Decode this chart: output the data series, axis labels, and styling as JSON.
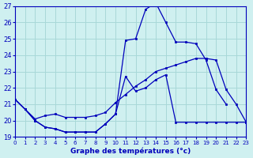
{
  "title": "Graphe des températures (°c)",
  "background_color": "#cff0f0",
  "grid_color": "#a8d8d8",
  "line_color": "#0000bb",
  "ylim": [
    19,
    27
  ],
  "xlim": [
    0,
    23
  ],
  "yticks": [
    19,
    20,
    21,
    22,
    23,
    24,
    25,
    26,
    27
  ],
  "xticks": [
    0,
    1,
    2,
    3,
    4,
    5,
    6,
    7,
    8,
    9,
    10,
    11,
    12,
    13,
    14,
    15,
    16,
    17,
    18,
    19,
    20,
    21,
    22,
    23
  ],
  "series": [
    {
      "x": [
        0,
        1,
        2,
        3,
        4,
        5,
        6,
        7,
        8,
        9,
        10,
        11,
        12,
        13,
        14,
        15,
        16,
        17,
        18,
        19,
        20,
        21
      ],
      "y": [
        21.3,
        20.7,
        20.0,
        19.6,
        19.5,
        19.3,
        19.3,
        19.3,
        19.3,
        19.8,
        20.4,
        24.9,
        25.0,
        26.8,
        27.2,
        26.0,
        24.8,
        24.8,
        24.7,
        23.7,
        21.9,
        21.0
      ]
    },
    {
      "x": [
        0,
        1,
        2,
        3,
        4,
        5,
        6,
        7,
        8,
        9,
        10,
        11,
        12,
        13,
        14,
        15,
        16,
        17,
        18,
        19,
        20,
        21,
        22,
        23
      ],
      "y": [
        21.3,
        20.7,
        20.1,
        20.3,
        20.4,
        20.2,
        20.2,
        20.2,
        20.3,
        20.5,
        21.1,
        21.6,
        22.1,
        22.5,
        23.0,
        23.2,
        23.4,
        23.6,
        23.8,
        23.8,
        23.7,
        21.9,
        21.0,
        19.9
      ]
    },
    {
      "x": [
        0,
        1,
        2,
        3,
        4,
        5,
        6,
        7,
        8,
        9,
        10,
        11,
        12,
        13,
        14,
        15,
        16,
        17,
        18,
        19,
        20,
        21,
        22,
        23
      ],
      "y": [
        21.3,
        20.7,
        20.0,
        19.6,
        19.5,
        19.3,
        19.3,
        19.3,
        19.3,
        19.8,
        20.4,
        22.7,
        21.8,
        22.0,
        22.5,
        22.8,
        19.9,
        19.9,
        19.9,
        19.9,
        19.9,
        19.9,
        19.9,
        19.9
      ]
    }
  ]
}
